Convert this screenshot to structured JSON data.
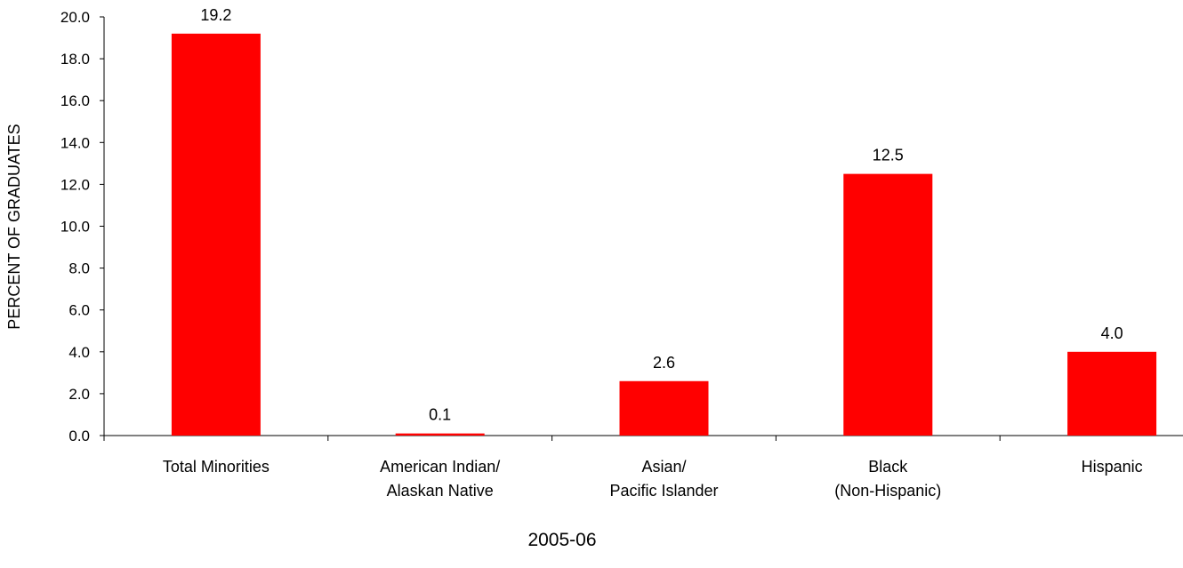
{
  "chart_data": {
    "type": "bar",
    "title": "",
    "xlabel": "2005-06",
    "ylabel": "PERCENT OF GRADUATES",
    "categories": [
      [
        "Total Minorities"
      ],
      [
        "American Indian/",
        "Alaskan Native"
      ],
      [
        "Asian/",
        "Pacific Islander"
      ],
      [
        "Black",
        "(Non-Hispanic)"
      ],
      [
        "Hispanic"
      ]
    ],
    "values": [
      19.2,
      0.1,
      2.6,
      12.5,
      4.0
    ],
    "value_labels": [
      "19.2",
      "0.1",
      "2.6",
      "12.5",
      "4.0"
    ],
    "ylim": [
      0,
      20
    ],
    "yticks": [
      "0.0",
      "2.0",
      "4.0",
      "6.0",
      "8.0",
      "10.0",
      "12.0",
      "14.0",
      "16.0",
      "18.0",
      "20.0"
    ],
    "grid": false,
    "legend": "none",
    "bar_color": "#FF0000"
  }
}
